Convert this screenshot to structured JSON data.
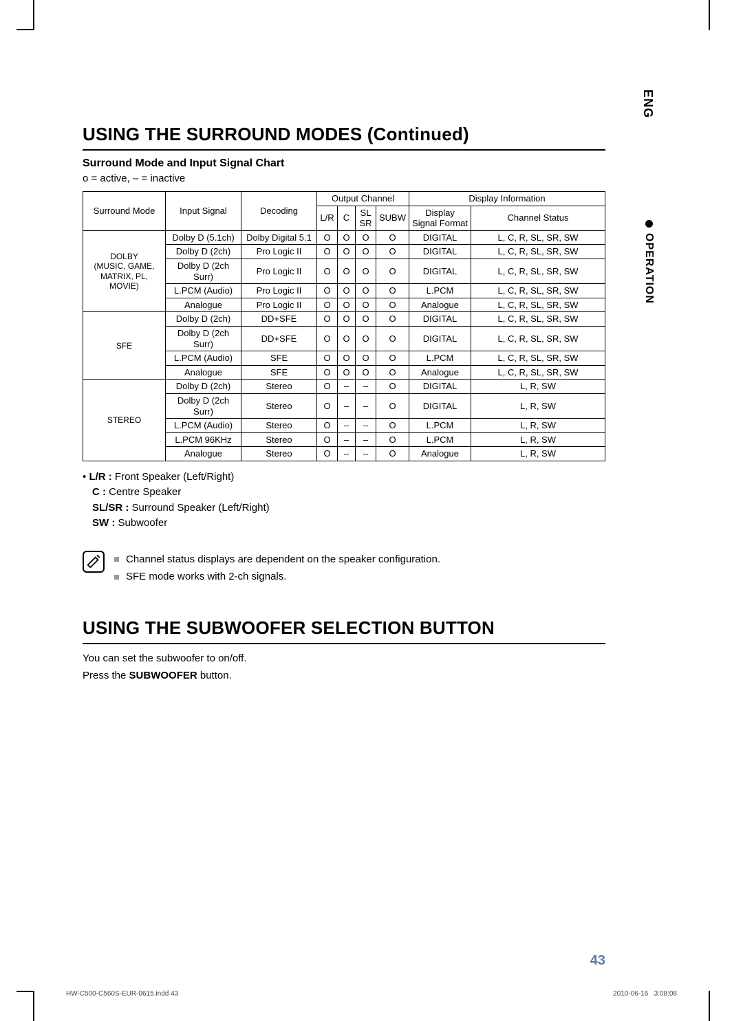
{
  "lang_tab": "ENG",
  "side_tab": "OPERATION",
  "heading1": "USING THE SURROUND MODES (Continued)",
  "subheading": "Surround Mode and Input Signal Chart",
  "legend_small": "o = active,  – = inactive",
  "table": {
    "header": {
      "surround_mode": "Surround Mode",
      "input_signal": "Input Signal",
      "decoding": "Decoding",
      "output_channel": "Output Channel",
      "lr": "L/R",
      "c": "C",
      "slsr_top": "SL",
      "slsr_bot": "SR",
      "subw": "SUBW",
      "display_info": "Display Information",
      "dsf": "Display Signal Format",
      "channel_status": "Channel Status"
    },
    "groups": [
      {
        "mode_lines": [
          "DOLBY",
          "(MUSIC, GAME,",
          "MATRIX, PL, MOVIE)"
        ],
        "rows": [
          {
            "input": "Dolby D (5.1ch)",
            "dec": "Dolby Digital 5.1",
            "lr": "O",
            "c": "O",
            "sl": "O",
            "subw": "O",
            "dsf": "DIGITAL",
            "cs": "L, C, R, SL, SR, SW"
          },
          {
            "input": "Dolby D (2ch)",
            "dec": "Pro Logic II",
            "lr": "O",
            "c": "O",
            "sl": "O",
            "subw": "O",
            "dsf": "DIGITAL",
            "cs": "L, C, R, SL, SR, SW"
          },
          {
            "input": "Dolby D (2ch Surr)",
            "dec": "Pro Logic II",
            "lr": "O",
            "c": "O",
            "sl": "O",
            "subw": "O",
            "dsf": "DIGITAL",
            "cs": "L, C, R, SL, SR, SW"
          },
          {
            "input": "L.PCM (Audio)",
            "dec": "Pro Logic II",
            "lr": "O",
            "c": "O",
            "sl": "O",
            "subw": "O",
            "dsf": "L.PCM",
            "cs": "L, C, R, SL, SR, SW"
          },
          {
            "input": "Analogue",
            "dec": "Pro Logic II",
            "lr": "O",
            "c": "O",
            "sl": "O",
            "subw": "O",
            "dsf": "Analogue",
            "cs": "L, C, R, SL, SR, SW"
          }
        ]
      },
      {
        "mode_lines": [
          "SFE"
        ],
        "rows": [
          {
            "input": "Dolby D (2ch)",
            "dec": "DD+SFE",
            "lr": "O",
            "c": "O",
            "sl": "O",
            "subw": "O",
            "dsf": "DIGITAL",
            "cs": "L, C, R, SL, SR, SW"
          },
          {
            "input": "Dolby D (2ch Surr)",
            "dec": "DD+SFE",
            "lr": "O",
            "c": "O",
            "sl": "O",
            "subw": "O",
            "dsf": "DIGITAL",
            "cs": "L, C, R, SL, SR, SW"
          },
          {
            "input": "L.PCM (Audio)",
            "dec": "SFE",
            "lr": "O",
            "c": "O",
            "sl": "O",
            "subw": "O",
            "dsf": "L.PCM",
            "cs": "L, C, R, SL, SR, SW"
          },
          {
            "input": "Analogue",
            "dec": "SFE",
            "lr": "O",
            "c": "O",
            "sl": "O",
            "subw": "O",
            "dsf": "Analogue",
            "cs": "L, C, R, SL, SR, SW"
          }
        ]
      },
      {
        "mode_lines": [
          "STEREO"
        ],
        "rows": [
          {
            "input": "Dolby D (2ch)",
            "dec": "Stereo",
            "lr": "O",
            "c": "–",
            "sl": "–",
            "subw": "O",
            "dsf": "DIGITAL",
            "cs": "L, R, SW"
          },
          {
            "input": "Dolby D (2ch Surr)",
            "dec": "Stereo",
            "lr": "O",
            "c": "–",
            "sl": "–",
            "subw": "O",
            "dsf": "DIGITAL",
            "cs": "L, R, SW"
          },
          {
            "input": "L.PCM (Audio)",
            "dec": "Stereo",
            "lr": "O",
            "c": "–",
            "sl": "–",
            "subw": "O",
            "dsf": "L.PCM",
            "cs": "L, R, SW"
          },
          {
            "input": "L.PCM 96KHz",
            "dec": "Stereo",
            "lr": "O",
            "c": "–",
            "sl": "–",
            "subw": "O",
            "dsf": "L.PCM",
            "cs": "L, R, SW"
          },
          {
            "input": "Analogue",
            "dec": "Stereo",
            "lr": "O",
            "c": "–",
            "sl": "–",
            "subw": "O",
            "dsf": "Analogue",
            "cs": "L, R, SW"
          }
        ]
      }
    ]
  },
  "speaker_legend": {
    "bullet": "•",
    "lr_b": "L/R :",
    "lr_t": " Front Speaker (Left/Right)",
    "c_b": "C :",
    "c_t": " Centre Speaker",
    "sl_b": "SL/SR :",
    "sl_t": " Surround Speaker (Left/Right)",
    "sw_b": "SW :",
    "sw_t": " Subwoofer"
  },
  "notes": {
    "line1": "Channel status displays are dependent on the speaker configuration.",
    "line2": "SFE mode works with 2-ch signals."
  },
  "heading2": "USING THE SUBWOOFER SELECTION BUTTON",
  "body": {
    "line1": "You can set the subwoofer to on/off.",
    "line2_a": "Press the ",
    "line2_b": "SUBWOOFER",
    "line2_c": " button."
  },
  "page_number": "43",
  "footer": {
    "left": "HW-C500-C560S-EUR-0615.indd   43",
    "right_date": "2010-06-16",
    "right_time": "3:08:08"
  }
}
